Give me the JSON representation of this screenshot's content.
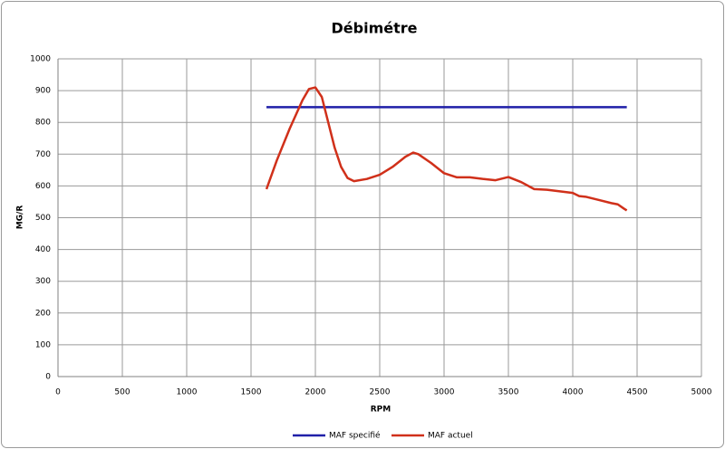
{
  "chart_data": {
    "type": "line",
    "title": "Débimétre",
    "x_label": "RPM",
    "y_label": "MG/R",
    "series": [
      {
        "name": "MAF specifié",
        "color": "#1f1fa8",
        "x": [
          1620,
          4420
        ],
        "values": [
          848,
          848
        ]
      },
      {
        "name": "MAF actuel",
        "color": "#d0301a",
        "x": [
          1620,
          1700,
          1800,
          1900,
          1950,
          2000,
          2050,
          2100,
          2150,
          2200,
          2250,
          2300,
          2400,
          2500,
          2600,
          2700,
          2760,
          2800,
          2900,
          3000,
          3100,
          3200,
          3300,
          3400,
          3500,
          3600,
          3700,
          3800,
          3900,
          4000,
          4050,
          4100,
          4200,
          4300,
          4350,
          4400,
          4420
        ],
        "values": [
          590,
          680,
          780,
          870,
          905,
          910,
          880,
          800,
          720,
          660,
          625,
          615,
          622,
          635,
          660,
          692,
          705,
          700,
          672,
          640,
          627,
          627,
          622,
          618,
          628,
          612,
          590,
          588,
          583,
          578,
          568,
          566,
          556,
          546,
          542,
          528,
          523
        ]
      }
    ],
    "xlim": [
      0,
      5000
    ],
    "xticks": [
      0,
      500,
      1000,
      1500,
      2000,
      2500,
      3000,
      3500,
      4000,
      4500,
      5000
    ],
    "ylim": [
      0,
      1000
    ],
    "yticks": [
      0,
      100,
      200,
      300,
      400,
      500,
      600,
      700,
      800,
      900,
      1000
    ],
    "grid": true,
    "legend": "bottom"
  }
}
